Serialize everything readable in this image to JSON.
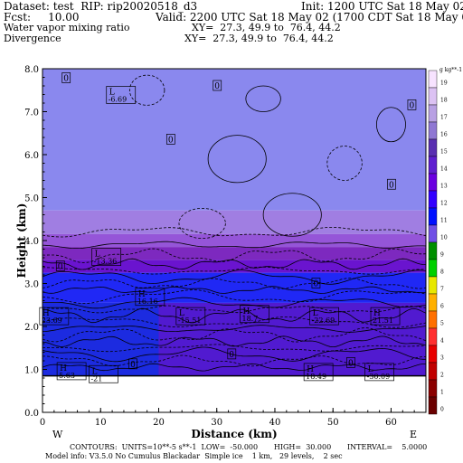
{
  "header": {
    "dataset": "Dataset: test  RIP: rip20020518_d3",
    "init": "Init: 1200 UTC Sat 18 May 02",
    "fcst": "Fcst:     10.00",
    "valid": "Valid: 2200 UTC Sat 18 May 02 (1700 CDT Sat 18 May 02)",
    "field1_name": "Water vapor mixing ratio",
    "field1_xy": "XY=  27.3, 49.9 to  76.4, 44.2",
    "field2_name": "Divergence",
    "field2_xy": "XY=  27.3, 49.9 to  76.4, 44.2"
  },
  "footer": {
    "contours": "CONTOURS:  UNITS=10**-5 s**-1  LOW=  -50.000       HIGH=  30.000       INTERVAL=    5.0000",
    "model_info": "Model info: V3.5.0 No Cumulus Blackadar  Simple ice    1 km,   29 levels,    2 sec"
  },
  "colorbar": {
    "unit_label": "g kg**-1",
    "labels": [
      "19",
      "18",
      "17",
      "16",
      "15",
      "14",
      "13",
      "12",
      "11",
      "10",
      "9",
      "8",
      "7",
      "6",
      "5",
      "4",
      "3",
      "2",
      "1",
      "0"
    ],
    "colors": [
      "#f7e3ff",
      "#dcc2f3",
      "#b8a0e3",
      "#8f77d3",
      "#5a2fb1",
      "#5f1fd0",
      "#6a00e0",
      "#3200ff",
      "#0010ff",
      "#7050e6",
      "#008f00",
      "#00d000",
      "#e8e800",
      "#ffb000",
      "#ff7000",
      "#ff3030",
      "#e80000",
      "#c00000",
      "#8a0000",
      "#6a0000"
    ]
  },
  "chart_data": {
    "type": "heatmap",
    "title": "",
    "xlabel": "Distance (km)",
    "ylabel": "Height (km)",
    "xlim": [
      0,
      66
    ],
    "ylim": [
      0,
      8
    ],
    "x_ticks": [
      0,
      10,
      20,
      30,
      40,
      50,
      60
    ],
    "y_ticks": [
      "0.0",
      "1.0",
      "2.0",
      "3.0",
      "4.0",
      "5.0",
      "6.0",
      "7.0",
      "8.0"
    ],
    "x_end_labels": {
      "left": "W",
      "right": "E"
    },
    "terrain_top_km": 0.85,
    "shaded_field": {
      "name": "Water vapor mixing ratio",
      "units": "g kg**-1",
      "bands": [
        {
          "z_from": 4.7,
          "z_to": 8.0,
          "value": 1,
          "color": "#8a88ee"
        },
        {
          "z_from": 4.15,
          "z_to": 4.7,
          "value": 2,
          "color": "#a07ee2"
        },
        {
          "z_from": 3.85,
          "z_to": 4.15,
          "value": 3,
          "color": "#9555d8"
        },
        {
          "z_from": 3.55,
          "z_to": 3.85,
          "value": 4,
          "color": "#7d29bf"
        },
        {
          "z_from": 3.25,
          "z_to": 3.55,
          "value": 5,
          "color": "#6a14cf"
        },
        {
          "z_from": 2.55,
          "z_to": 3.25,
          "value": 6,
          "color": "#2028f5"
        },
        {
          "z_from": 0.85,
          "z_to": 2.55,
          "value": 7,
          "color": "#1c2be0"
        }
      ],
      "moist_region": {
        "x_from": 20,
        "x_to": 66,
        "z_from": 0.85,
        "z_to": 2.55,
        "value": 5,
        "color": "#5a17cc"
      }
    },
    "contour_field": {
      "name": "Divergence",
      "units": "10**-5 s**-1",
      "low": -50.0,
      "high": 30.0,
      "interval": 5.0
    },
    "extrema_labels": [
      {
        "kind": "L",
        "value": "-6.69",
        "x": 13.5,
        "z": 7.4
      },
      {
        "kind": "L",
        "value": "-13.36",
        "x": 11.0,
        "z": 3.63
      },
      {
        "kind": "H",
        "value": "16.16",
        "x": 18.5,
        "z": 2.7
      },
      {
        "kind": "L",
        "value": "-15.51",
        "x": 25.5,
        "z": 2.25
      },
      {
        "kind": "H",
        "value": "18.7",
        "x": 36.5,
        "z": 2.3
      },
      {
        "kind": "L",
        "value": "-22.69",
        "x": 48.5,
        "z": 2.25
      },
      {
        "kind": "H",
        "value": "21.51",
        "x": 59.0,
        "z": 2.25
      },
      {
        "kind": "H",
        "value": "23.69",
        "x": 2.0,
        "z": 2.25
      },
      {
        "kind": "H",
        "value": "18.49",
        "x": 47.5,
        "z": 0.95
      },
      {
        "kind": "L",
        "value": "-30.09",
        "x": 58.0,
        "z": 0.95
      },
      {
        "kind": "H",
        "value": "5.63",
        "x": 5.0,
        "z": 0.97
      },
      {
        "kind": "L",
        "value": "-21",
        "x": 10.5,
        "z": 0.9
      }
    ],
    "zero_labels": [
      {
        "value": "0",
        "x": 4.0,
        "z": 7.78
      },
      {
        "value": "0",
        "x": 30.0,
        "z": 7.6
      },
      {
        "value": "0",
        "x": 63.5,
        "z": 7.15
      },
      {
        "value": "0",
        "x": 22.0,
        "z": 6.35
      },
      {
        "value": "0",
        "x": 60.0,
        "z": 5.3
      },
      {
        "value": "0",
        "x": 3.0,
        "z": 3.4
      },
      {
        "value": "0",
        "x": 47.0,
        "z": 3.0
      },
      {
        "value": "0",
        "x": 15.5,
        "z": 1.12
      },
      {
        "value": "0",
        "x": 32.5,
        "z": 1.35
      },
      {
        "value": "0",
        "x": 53.0,
        "z": 1.15
      }
    ]
  }
}
